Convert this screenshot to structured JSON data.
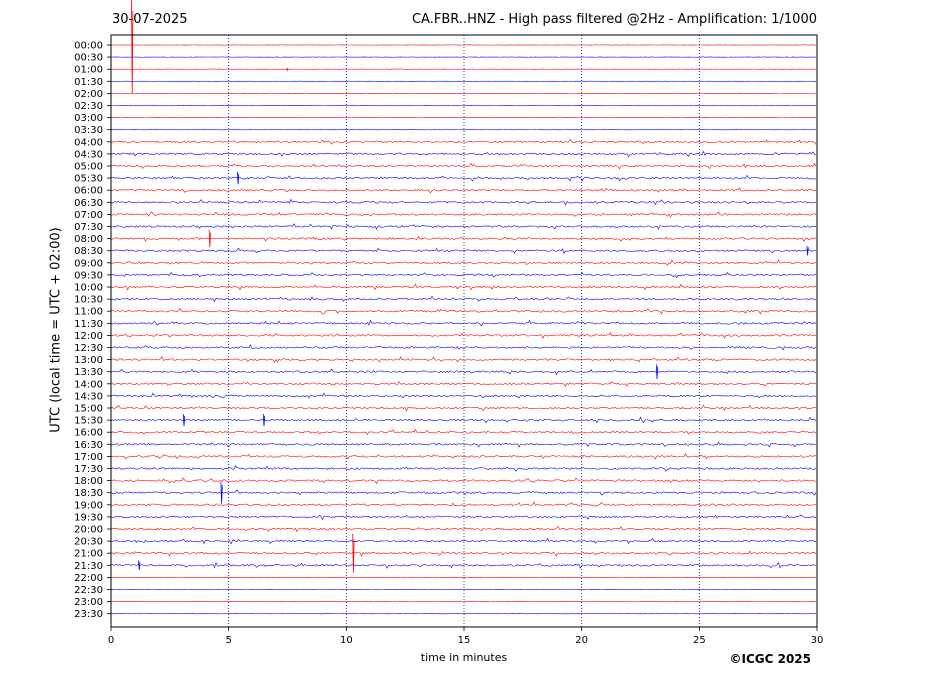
{
  "header": {
    "date": "30-07-2025",
    "title": "CA.FBR..HNZ - High pass filtered @2Hz - Amplification: 1/1000"
  },
  "footer": {
    "copyright": "©ICGC 2025"
  },
  "chart_data": {
    "type": "line",
    "title": "CA.FBR..HNZ - High pass filtered @2Hz - Amplification: 1/1000",
    "xlabel": "time in minutes",
    "ylabel": "UTC (local time = UTC + 02:00)",
    "xlim": [
      0,
      30
    ],
    "xticks": [
      0,
      5,
      10,
      15,
      20,
      25,
      30
    ],
    "x_grid": "dotted vertical lines every 5 minutes",
    "row_labels": [
      "00:00",
      "00:30",
      "01:00",
      "01:30",
      "02:00",
      "02:30",
      "03:00",
      "03:30",
      "04:00",
      "04:30",
      "05:00",
      "05:30",
      "06:00",
      "06:30",
      "07:00",
      "07:30",
      "08:00",
      "08:30",
      "09:00",
      "09:30",
      "10:00",
      "10:30",
      "11:00",
      "11:30",
      "12:00",
      "12:30",
      "13:00",
      "13:30",
      "14:00",
      "14:30",
      "15:00",
      "15:30",
      "16:00",
      "16:30",
      "17:00",
      "17:30",
      "18:00",
      "18:30",
      "19:00",
      "19:30",
      "20:00",
      "20:30",
      "21:00",
      "21:30",
      "22:00",
      "22:30",
      "23:00",
      "23:30"
    ],
    "row_colors": [
      "#ff0000",
      "#0000ff"
    ],
    "series_note": "helicorder: one 30-minute trace per row, alternating red/blue",
    "events": [
      {
        "row": "00:00",
        "minute": 0.9,
        "amp": 4.0
      },
      {
        "row": "01:00",
        "minute": 7.5,
        "amp": 0.1
      },
      {
        "row": "05:30",
        "minute": 5.4,
        "amp": 0.5
      },
      {
        "row": "08:00",
        "minute": 4.2,
        "amp": 0.7
      },
      {
        "row": "08:30",
        "minute": 29.6,
        "amp": 0.4
      },
      {
        "row": "13:30",
        "minute": 23.2,
        "amp": 0.6
      },
      {
        "row": "15:30",
        "minute": 3.1,
        "amp": 0.5
      },
      {
        "row": "15:30",
        "minute": 6.5,
        "amp": 0.5
      },
      {
        "row": "18:30",
        "minute": 4.7,
        "amp": 0.9
      },
      {
        "row": "21:00",
        "minute": 10.3,
        "amp": 1.6
      },
      {
        "row": "21:30",
        "minute": 1.2,
        "amp": 0.4
      }
    ]
  }
}
